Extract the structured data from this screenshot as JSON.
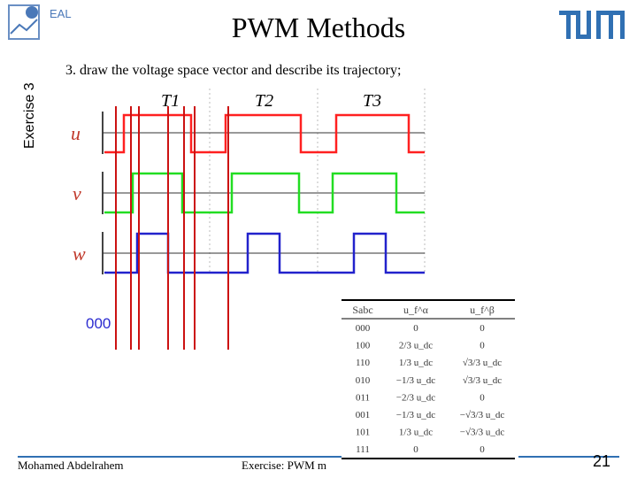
{
  "header": {
    "logo_text": "EAL",
    "title": "PWM Methods",
    "side_label": "Exercise 3"
  },
  "task": "3.  draw the voltage space vector and describe its trajectory;",
  "waveforms": {
    "periods": [
      "T1",
      "T2",
      "T3"
    ],
    "signals": [
      "u",
      "v",
      "w"
    ]
  },
  "state_label": "000",
  "table": {
    "header": [
      "Sabc",
      "u_f^α",
      "u_f^β"
    ],
    "rows": [
      [
        "000",
        "0",
        "0"
      ],
      [
        "100",
        "2/3 u_dc",
        "0"
      ],
      [
        "110",
        "1/3 u_dc",
        "√3/3 u_dc"
      ],
      [
        "010",
        "−1/3 u_dc",
        "√3/3 u_dc"
      ],
      [
        "011",
        "−2/3 u_dc",
        "0"
      ],
      [
        "001",
        "−1/3 u_dc",
        "−√3/3 u_dc"
      ],
      [
        "101",
        "1/3 u_dc",
        "−√3/3 u_dc"
      ],
      [
        "111",
        "0",
        "0"
      ]
    ]
  },
  "footer": {
    "author": "Mohamed Abdelrahem",
    "course": "Exercise: PWM m",
    "page": "21"
  }
}
